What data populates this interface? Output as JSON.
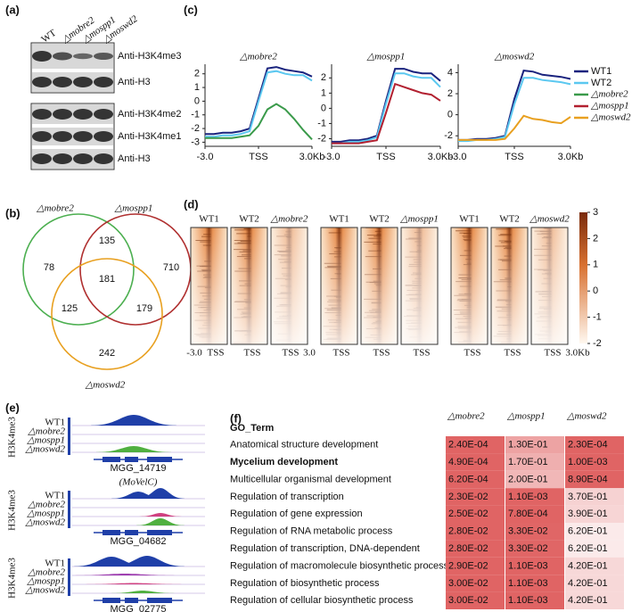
{
  "a": {
    "label": "(a)",
    "columns": [
      "WT",
      "△mobre2",
      "△mospp1",
      "△moswd2"
    ],
    "blots": [
      "Anti-H3K4me3",
      "Anti-H3",
      "Anti-H3K4me2",
      "Anti-H3K4me1",
      "Anti-H3"
    ]
  },
  "b": {
    "label": "(b)",
    "sets": [
      "△mobre2",
      "△mospp1",
      "△moswd2"
    ],
    "regions": [
      78,
      135,
      710,
      181,
      125,
      179,
      242
    ]
  },
  "c": {
    "label": "(c)",
    "charts": [
      {
        "type": "line",
        "title": "△mobre2",
        "x": [
          -3,
          -2.5,
          -2,
          -1.5,
          -1,
          -0.5,
          0,
          0.5,
          1,
          1.5,
          2,
          2.5,
          3
        ],
        "xlim": [
          -3,
          3
        ],
        "xticks": [
          {
            "value": -3,
            "label": "-3.0"
          },
          {
            "value": 0,
            "label": "TSS"
          },
          {
            "value": 3,
            "label": "3.0Kb"
          }
        ],
        "ylim": [
          -3.3,
          2.7
        ],
        "yticks": [
          -3,
          -2,
          -1,
          0,
          1,
          2
        ],
        "series": [
          {
            "name": "WT1",
            "color": "#1a237e",
            "values": [
              -2.4,
              -2.4,
              -2.3,
              -2.3,
              -2.2,
              -2.0,
              0.2,
              2.4,
              2.5,
              2.3,
              2.2,
              2.1,
              1.8
            ]
          },
          {
            "name": "WT2",
            "color": "#5bc8f0",
            "values": [
              -2.6,
              -2.6,
              -2.5,
              -2.5,
              -2.4,
              -2.2,
              0.0,
              2.1,
              2.2,
              2.0,
              1.9,
              1.9,
              1.5
            ]
          },
          {
            "name": "△mobre2",
            "color": "#3a9a4a",
            "values": [
              -2.7,
              -2.7,
              -2.7,
              -2.7,
              -2.6,
              -2.5,
              -1.8,
              -0.6,
              -0.2,
              -0.6,
              -1.3,
              -2.1,
              -2.8
            ]
          }
        ]
      },
      {
        "type": "line",
        "title": "△mospp1",
        "x": [
          -3,
          -2.5,
          -2,
          -1.5,
          -1,
          -0.5,
          0,
          0.5,
          1,
          1.5,
          2,
          2.5,
          3
        ],
        "xlim": [
          -3,
          3
        ],
        "xticks": [
          {
            "value": -3,
            "label": "-3.0"
          },
          {
            "value": 0,
            "label": "TSS"
          },
          {
            "value": 3,
            "label": "3.0Kb"
          }
        ],
        "ylim": [
          -2.5,
          2.9
        ],
        "yticks": [
          -2,
          -1,
          0,
          1,
          2
        ],
        "series": [
          {
            "name": "WT1",
            "color": "#1a237e",
            "values": [
              -2.2,
              -2.2,
              -2.1,
              -2.1,
              -2.0,
              -1.8,
              0.5,
              2.6,
              2.6,
              2.4,
              2.3,
              2.3,
              1.8
            ]
          },
          {
            "name": "WT2",
            "color": "#5bc8f0",
            "values": [
              -2.3,
              -2.3,
              -2.2,
              -2.2,
              -2.1,
              -1.9,
              0.3,
              2.3,
              2.3,
              2.1,
              2.0,
              2.0,
              1.4
            ]
          },
          {
            "name": "△mospp1",
            "color": "#b22030",
            "values": [
              -2.3,
              -2.3,
              -2.3,
              -2.3,
              -2.2,
              -2.1,
              -0.3,
              1.6,
              1.4,
              1.2,
              1.0,
              0.9,
              0.5
            ]
          }
        ]
      },
      {
        "type": "line",
        "title": "△moswd2",
        "x": [
          -3,
          -2.5,
          -2,
          -1.5,
          -1,
          -0.5,
          0,
          0.5,
          1,
          1.5,
          2,
          2.5,
          3
        ],
        "xlim": [
          -3,
          3
        ],
        "xticks": [
          {
            "value": -3,
            "label": "-3.0"
          },
          {
            "value": 0,
            "label": "TSS"
          },
          {
            "value": 3,
            "label": "3.0Kb"
          }
        ],
        "ylim": [
          -3,
          4.8
        ],
        "yticks": [
          -2,
          0,
          2,
          4
        ],
        "series": [
          {
            "name": "WT1",
            "color": "#1a237e",
            "values": [
              -2.4,
              -2.4,
              -2.3,
              -2.3,
              -2.2,
              -2.0,
              1.5,
              4.2,
              4.1,
              3.8,
              3.7,
              3.6,
              3.4
            ]
          },
          {
            "name": "WT2",
            "color": "#5bc8f0",
            "values": [
              -2.5,
              -2.5,
              -2.4,
              -2.4,
              -2.3,
              -2.1,
              1.0,
              3.5,
              3.5,
              3.3,
              3.2,
              3.1,
              2.9
            ]
          },
          {
            "name": "△moswd2",
            "color": "#e8a020",
            "values": [
              -2.4,
              -2.4,
              -2.4,
              -2.4,
              -2.4,
              -2.3,
              -1.3,
              -0.1,
              -0.4,
              -0.5,
              -0.7,
              -0.8,
              -0.2
            ]
          }
        ]
      }
    ]
  },
  "d": {
    "label": "(d)",
    "groups": [
      [
        "WT1",
        "WT2",
        "△mobre2"
      ],
      [
        "WT1",
        "WT2",
        "△mospp1"
      ],
      [
        "WT1",
        "WT2",
        "△moswd2"
      ]
    ],
    "axis_labels": [
      "-3.0",
      "TSS",
      "TSS",
      "TSS",
      "3.0",
      "TSS",
      "TSS",
      "TSS",
      "TSS",
      "TSS",
      "TSS",
      "3.0Kb"
    ],
    "colorbar": {
      "lim": [
        -2,
        3
      ],
      "ticks": [
        3,
        2,
        1,
        0,
        -1,
        -2
      ]
    }
  },
  "e": {
    "label": "(e)",
    "ylabel": "H3K4me3",
    "tracks": [
      "WT1",
      "△mobre2",
      "△mospp1",
      "△moswd2"
    ],
    "loci": [
      {
        "gene": "MGG_14719"
      },
      {
        "gene": "MGG_04682",
        "alias": "(MoVelC)"
      },
      {
        "gene": "MGG_02775"
      }
    ]
  },
  "f": {
    "label": "(f)",
    "header": [
      "GO_Term",
      "△mobre2",
      "△mospp1",
      "△moswd2"
    ],
    "rows": [
      [
        "Anatomical structure development",
        "2.40E-04",
        "1.30E-01",
        "2.30E-04"
      ],
      [
        "Mycelium development",
        "4.90E-04",
        "1.70E-01",
        "1.00E-03"
      ],
      [
        "Multicellular organismal development",
        "6.20E-04",
        "2.00E-01",
        "8.90E-04"
      ],
      [
        "Regulation of transcription",
        "2.30E-02",
        "1.10E-03",
        "3.70E-01"
      ],
      [
        "Regulation of gene expression",
        "2.50E-02",
        "7.80E-04",
        "3.90E-01"
      ],
      [
        "Regulation of RNA metabolic process",
        "2.80E-02",
        "3.30E-02",
        "6.20E-01"
      ],
      [
        "Regulation of transcription, DNA-dependent",
        "2.80E-02",
        "3.30E-02",
        "6.20E-01"
      ],
      [
        "Regulation of macromolecule biosynthetic process",
        "2.90E-02",
        "1.10E-03",
        "4.20E-01"
      ],
      [
        "Regulation of biosynthetic process",
        "3.00E-02",
        "1.10E-03",
        "4.20E-01"
      ],
      [
        "Regulation of cellular biosynthetic process",
        "3.00E-02",
        "1.10E-03",
        "4.20E-01"
      ]
    ]
  }
}
